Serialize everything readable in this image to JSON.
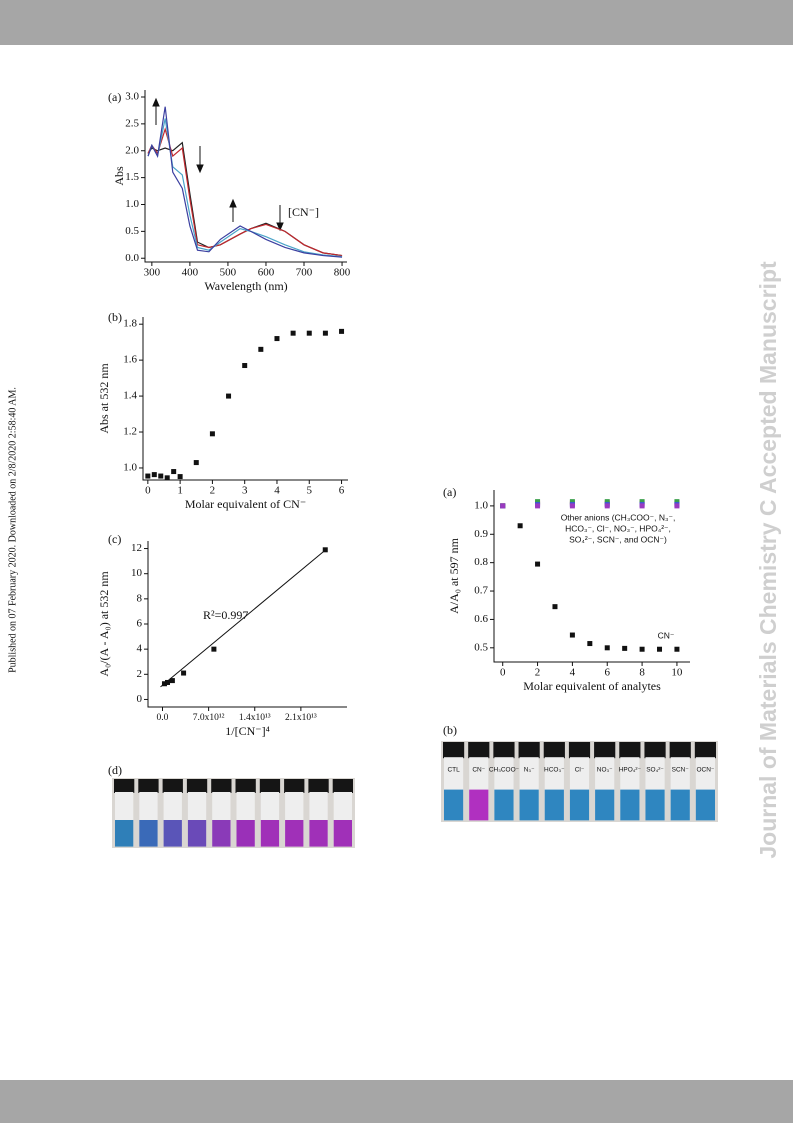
{
  "side_note": "Published on 07 February 2020. Downloaded on 2/8/2020 2:58:40 AM.",
  "watermark": "Journal of Materials Chemistry C Accepted Manuscript",
  "chart_data": [
    {
      "type": "line",
      "panel_label": "(a)",
      "xlabel": "Wavelength (nm)",
      "ylabel": "Abs",
      "xlim": [
        282,
        813
      ],
      "ylim": [
        -0.07,
        3.13
      ],
      "xticks": [
        300,
        400,
        500,
        600,
        700,
        800
      ],
      "yticks": [
        {
          "value": 0,
          "label": "0.0"
        },
        0.5,
        {
          "value": 1,
          "label": "1.0"
        },
        1.5,
        {
          "value": 2,
          "label": "2.0"
        },
        2.5,
        {
          "value": 3,
          "label": "3.0"
        }
      ],
      "x": [
        290,
        300,
        315,
        335,
        355,
        380,
        400,
        420,
        450,
        480,
        532,
        560,
        600,
        650,
        700,
        750,
        800
      ],
      "series": [
        {
          "color": "#222222",
          "values": [
            1.95,
            2.05,
            2.0,
            2.05,
            2.0,
            2.15,
            1.2,
            0.3,
            0.2,
            0.25,
            0.45,
            0.55,
            0.65,
            0.5,
            0.25,
            0.1,
            0.05
          ]
        },
        {
          "color": "#c0272d",
          "values": [
            1.95,
            2.1,
            1.95,
            2.4,
            1.9,
            2.05,
            1.1,
            0.25,
            0.2,
            0.25,
            0.45,
            0.55,
            0.63,
            0.5,
            0.25,
            0.1,
            0.05
          ]
        },
        {
          "color": "#4aa3c8",
          "values": [
            1.9,
            2.1,
            1.9,
            2.6,
            1.7,
            1.55,
            0.8,
            0.2,
            0.15,
            0.3,
            0.55,
            0.5,
            0.4,
            0.25,
            0.12,
            0.06,
            0.03
          ]
        },
        {
          "color": "#3b3fa0",
          "values": [
            1.9,
            2.1,
            1.9,
            2.82,
            1.6,
            1.3,
            0.6,
            0.15,
            0.12,
            0.35,
            0.6,
            0.5,
            0.35,
            0.2,
            0.1,
            0.05,
            0.02
          ]
        }
      ],
      "annotations": [
        "[CN⁻]"
      ]
    },
    {
      "type": "scatter",
      "panel_label": "(b)",
      "xlabel": "Molar equivalent of CN⁻",
      "ylabel": "Abs at 532 nm",
      "xlim": [
        -0.15,
        6.2
      ],
      "ylim": [
        0.933,
        1.84
      ],
      "xticks": [
        0,
        1,
        2,
        3,
        4,
        5,
        6
      ],
      "yticks": [
        {
          "value": 1,
          "label": "1.0"
        },
        1.2,
        1.4,
        1.6,
        1.8
      ],
      "x": [
        0,
        0.2,
        0.4,
        0.6,
        0.8,
        1.0,
        1.5,
        2,
        2.5,
        3,
        3.5,
        4,
        4.5,
        5,
        5.5,
        6
      ],
      "series": [
        {
          "color": "#111111",
          "values": [
            0.955,
            0.963,
            0.955,
            0.945,
            0.98,
            0.952,
            1.03,
            1.19,
            1.4,
            1.57,
            1.66,
            1.72,
            1.75,
            1.75,
            1.75,
            1.76
          ]
        }
      ],
      "annotations": []
    },
    {
      "type": "scatter",
      "panel_label": "(c)",
      "xlabel": "1/[CN⁻]⁴",
      "ylabel": "A₀/(A - A₀) at 532 nm",
      "xlim": [
        -2200000000000.0,
        28000000000000.0
      ],
      "ylim": [
        -0.6,
        12.6
      ],
      "xticks": [
        {
          "value": 0,
          "label": "0.0"
        },
        {
          "value": 7000000000000.0,
          "label": "7.0x10¹²"
        },
        {
          "value": 14000000000000.0,
          "label": "1.4x10¹³"
        },
        {
          "value": 21000000000000.0,
          "label": "2.1x10¹³"
        }
      ],
      "yticks": [
        0,
        2,
        4,
        6,
        8,
        10,
        12
      ],
      "x": [
        300000000000.0,
        760000000000.0,
        1500000000000.0,
        3200000000000.0,
        7800000000000.0,
        24700000000000.0
      ],
      "series": [
        {
          "color": "#111111",
          "values": [
            1.25,
            1.35,
            1.5,
            2.1,
            4.0,
            11.9
          ]
        }
      ],
      "fit_line": {
        "x": [
          -300000000000.0,
          25000000000000.0
        ],
        "y": [
          1.0,
          12.0
        ]
      },
      "annotations": [
        "R²=0.997"
      ]
    },
    {
      "type": "scatter",
      "panel_label": "(a)",
      "xlabel": "Molar equivalent of analytes",
      "ylabel": "A/A₀ at 597 nm",
      "xlim": [
        -0.5,
        10.75
      ],
      "ylim": [
        0.45,
        1.056
      ],
      "xticks": [
        0,
        2,
        4,
        6,
        8,
        10
      ],
      "yticks": [
        0.5,
        0.6,
        0.7,
        0.8,
        0.9,
        {
          "value": 1,
          "label": "1.0"
        }
      ],
      "x": [
        0,
        1,
        2,
        3,
        4,
        5,
        6,
        7,
        8,
        9,
        10
      ],
      "series": [
        {
          "color": "#111111",
          "values": [
            1.0,
            0.93,
            0.795,
            0.645,
            0.545,
            0.515,
            0.5,
            0.498,
            0.495,
            0.495,
            0.495
          ]
        },
        {
          "color": "#d03a3a",
          "values": [
            1.0,
            null,
            1.01,
            null,
            1.01,
            null,
            1.01,
            null,
            1.01,
            null,
            1.01
          ]
        },
        {
          "color": "#3aa04a",
          "values": [
            1.0,
            null,
            1.015,
            null,
            1.015,
            null,
            1.015,
            null,
            1.015,
            null,
            1.015
          ]
        },
        {
          "color": "#3a5ad0",
          "values": [
            1.0,
            null,
            1.005,
            null,
            1.005,
            null,
            1.005,
            null,
            1.005,
            null,
            1.005
          ]
        },
        {
          "color": "#9a3ac0",
          "values": [
            1.0,
            null,
            1.0,
            null,
            1.0,
            null,
            1.0,
            null,
            1.0,
            null,
            1.0
          ]
        }
      ],
      "annotations": [
        "Other anions (CH₃COO⁻, N₃⁻,",
        "HCO₃⁻, Cl⁻, NO₃⁻, HPO₄²⁻,",
        "SO₄²⁻, SCN⁻, and OCN⁻)",
        "CN⁻"
      ]
    }
  ],
  "photos": [
    {
      "panel_label": "(d)"
    },
    {
      "panel_label": "(b)",
      "vial_labels": [
        "CTL",
        "CN⁻",
        "CH₃COO⁻",
        "N₃⁻",
        "HCO₃⁻",
        "Cl⁻",
        "NO₃⁻",
        "HPO₄²⁻",
        "SO₄²⁻",
        "SCN⁻",
        "OCN⁻"
      ]
    }
  ]
}
